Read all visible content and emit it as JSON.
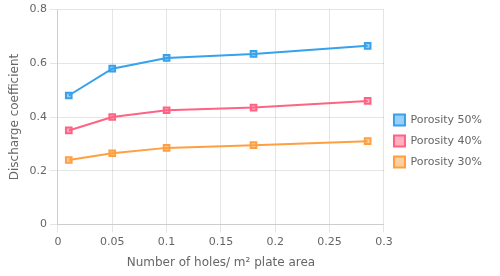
{
  "chart_data": {
    "type": "line",
    "xlabel": "Number of holes/ m² plate area",
    "ylabel": "Discharge coefficient",
    "x": [
      0.01,
      0.05,
      0.1,
      0.18,
      0.285
    ],
    "series": [
      {
        "name": "Porosity 50%",
        "values": [
          0.48,
          0.58,
          0.62,
          0.635,
          0.665
        ]
      },
      {
        "name": "Porosity 40%",
        "values": [
          0.35,
          0.4,
          0.425,
          0.435,
          0.46
        ]
      },
      {
        "name": "Porosity 30%",
        "values": [
          0.24,
          0.265,
          0.285,
          0.295,
          0.31
        ]
      }
    ],
    "xlim": [
      0,
      0.3
    ],
    "ylim": [
      0,
      0.8
    ],
    "xticks": [
      0,
      0.05,
      0.1,
      0.15,
      0.2,
      0.25,
      0.3
    ],
    "yticks": [
      0,
      0.2,
      0.4,
      0.6,
      0.8
    ],
    "grid": true,
    "legend": "right",
    "marker": "square"
  }
}
